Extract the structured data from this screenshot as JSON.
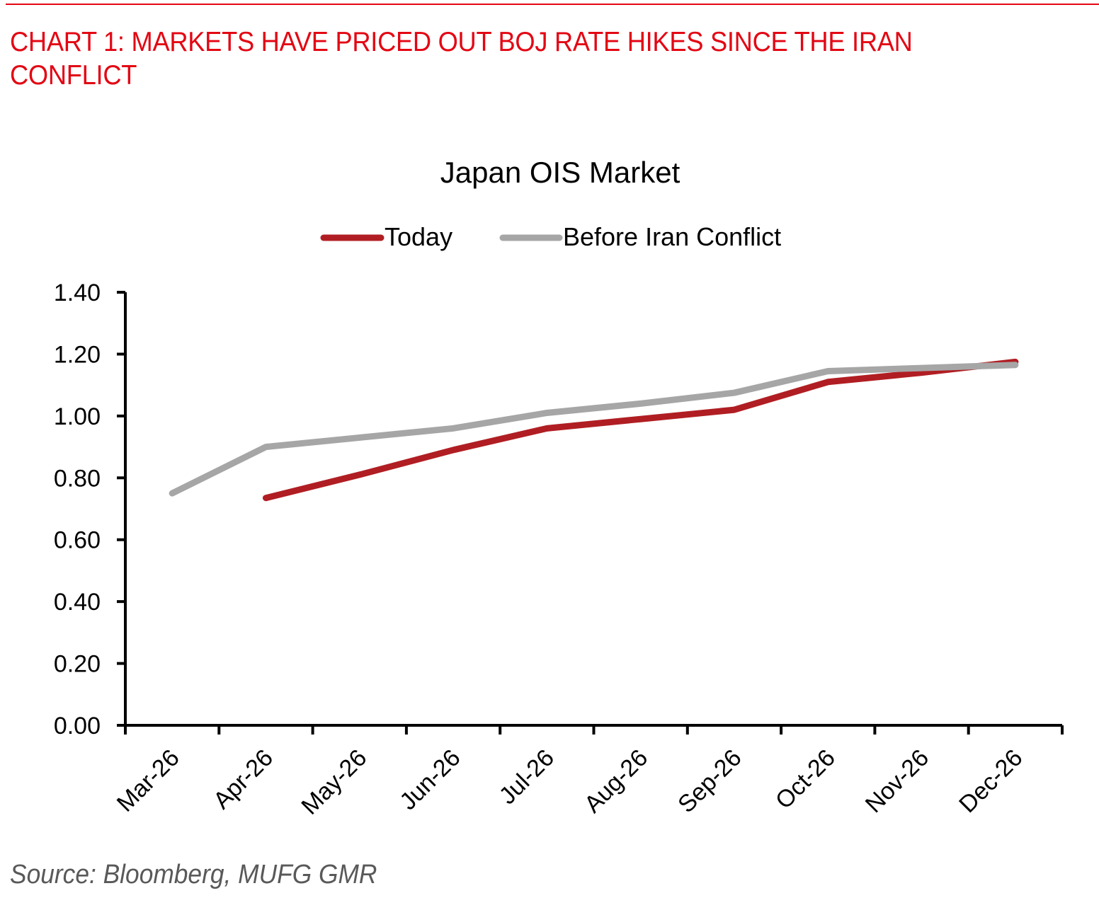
{
  "heading": "CHART 1: MARKETS HAVE PRICED OUT BOJ RATE HIKES SINCE THE IRAN CONFLICT",
  "source": "Source: Bloomberg, MUFG GMR",
  "colors": {
    "heading": "#e30613",
    "today": "#b01e23",
    "before": "#a6a6a6",
    "axis": "#000000",
    "source": "#595959"
  },
  "chart_data": {
    "type": "line",
    "title": "Japan OIS Market",
    "xlabel": "",
    "ylabel": "",
    "categories": [
      "Mar-26",
      "Apr-26",
      "May-26",
      "Jun-26",
      "Jul-26",
      "Aug-26",
      "Sep-26",
      "Oct-26",
      "Nov-26",
      "Dec-26"
    ],
    "ylim": [
      0,
      1.4
    ],
    "yticks": [
      "0.00",
      "0.20",
      "0.40",
      "0.60",
      "0.80",
      "1.00",
      "1.20",
      "1.40"
    ],
    "ytick_values": [
      0,
      0.2,
      0.4,
      0.6,
      0.8,
      1.0,
      1.2,
      1.4
    ],
    "grid": false,
    "legend_position": "top-center",
    "series": [
      {
        "name": "Today",
        "color": "#b01e23",
        "values": [
          null,
          0.735,
          0.81,
          0.89,
          0.96,
          0.99,
          1.02,
          1.11,
          1.14,
          1.175
        ]
      },
      {
        "name": "Before Iran Conflict",
        "color": "#a6a6a6",
        "values": [
          0.75,
          0.9,
          0.93,
          0.96,
          1.01,
          1.04,
          1.075,
          1.145,
          1.155,
          1.165
        ]
      }
    ]
  }
}
